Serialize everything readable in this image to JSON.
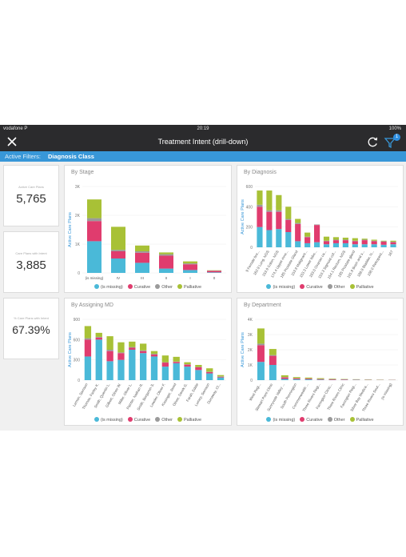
{
  "status_bar": {
    "carrier": "vodafone P",
    "time": "20:19",
    "battery": "100%"
  },
  "header": {
    "title": "Treatment Intent (drill-down)",
    "filter_count": "1"
  },
  "filter_bar": {
    "label": "Active Filters:",
    "value": "Diagnosis Class"
  },
  "kpis": [
    {
      "label": "Active Care Plans",
      "value": "5,765"
    },
    {
      "label": "Care Plans with Intent",
      "value": "3,885"
    },
    {
      "label": "% Care Plans with Intent",
      "value": "67.39%"
    }
  ],
  "colors": {
    "missing": "#4ab9d8",
    "curative": "#e03c6e",
    "other": "#9a9a9a",
    "palliative": "#a8c136",
    "accent": "#3897d8"
  },
  "legend": [
    {
      "key": "missing",
      "label": "(is missing)"
    },
    {
      "key": "curative",
      "label": "Curative"
    },
    {
      "key": "other",
      "label": "Other"
    },
    {
      "key": "palliative",
      "label": "Palliative"
    }
  ],
  "chart_data": [
    {
      "id": "stage",
      "type": "bar",
      "stacked": true,
      "title": "By Stage",
      "ylabel": "Active Care Plans",
      "ylim": [
        0,
        3000
      ],
      "yticks": [
        "0",
        "1K",
        "2K",
        "3K"
      ],
      "label_rotation": 0,
      "categories": [
        "(is missing)",
        "IV",
        "III",
        "II",
        "I",
        "0"
      ],
      "series": [
        {
          "name": "(is missing)",
          "values": [
            1100,
            500,
            350,
            150,
            100,
            20
          ]
        },
        {
          "name": "Curative",
          "values": [
            700,
            250,
            350,
            450,
            200,
            50
          ]
        },
        {
          "name": "Other",
          "values": [
            100,
            50,
            50,
            50,
            30,
            10
          ]
        },
        {
          "name": "Palliative",
          "values": [
            650,
            800,
            200,
            60,
            70,
            10
          ]
        }
      ]
    },
    {
      "id": "diagnosis",
      "type": "bar",
      "stacked": true,
      "title": "By Diagnosis",
      "ylabel": "Active Care Plans",
      "ylim": [
        0,
        600
      ],
      "yticks": [
        "0",
        "200",
        "400",
        "600"
      ],
      "label_rotation": -60,
      "categories": [
        "9 Female bre...",
        "162.9 Lung, NOS",
        "153.9 Colon, NOS",
        "174.4 Upper-inne...",
        "185 Prostate Gland",
        "153.9 Malignant...",
        "153.3 Lower lobe...",
        "183.0 Ovarian ca...",
        "153.3 Sigmoid col...",
        "154.1 Rectum, NOS",
        "185 Prostate gland",
        "191.9 Brain and s...",
        "188.9 Bladder, N...",
        "158.0 Retroperit...",
        "167"
      ],
      "series": [
        {
          "name": "(is missing)",
          "values": [
            200,
            170,
            180,
            150,
            60,
            40,
            50,
            30,
            40,
            40,
            30,
            30,
            30,
            25,
            30
          ]
        },
        {
          "name": "Curative",
          "values": [
            200,
            180,
            170,
            120,
            170,
            60,
            170,
            30,
            30,
            30,
            30,
            40,
            30,
            30,
            20
          ]
        },
        {
          "name": "Other",
          "values": [
            20,
            15,
            15,
            10,
            10,
            5,
            5,
            5,
            5,
            5,
            5,
            5,
            5,
            5,
            5
          ]
        },
        {
          "name": "Palliative",
          "values": [
            140,
            195,
            150,
            120,
            40,
            40,
            0,
            40,
            25,
            20,
            25,
            10,
            10,
            5,
            10
          ]
        }
      ]
    },
    {
      "id": "assigning_md",
      "type": "bar",
      "stacked": true,
      "title": "By Assigning MD",
      "ylabel": "Active Care Plans",
      "ylim": [
        0,
        900
      ],
      "yticks": [
        "0",
        "300",
        "600",
        "900"
      ],
      "label_rotation": -60,
      "categories": [
        "Lemon, Samson",
        "Thomas, Farley K.",
        "Smith, Quentin L.",
        "Gilbert, Oliver W.",
        "Miller, Oliver L.",
        "Painter, Nathan R.",
        "Smith, Benjamin S.",
        "Lowder, Oliver F.",
        "Kissinger, Jared",
        "Oliver, Derek G.",
        "Farah, Eddie",
        "Lumey, Samson",
        "Dunaway, Cl..."
      ],
      "series": [
        {
          "name": "(is missing)",
          "values": [
            350,
            600,
            280,
            300,
            450,
            400,
            350,
            200,
            250,
            200,
            150,
            100,
            40
          ]
        },
        {
          "name": "Curative",
          "values": [
            250,
            30,
            150,
            100,
            30,
            30,
            30,
            60,
            20,
            30,
            40,
            20,
            10
          ]
        },
        {
          "name": "Other",
          "values": [
            20,
            10,
            20,
            10,
            10,
            10,
            10,
            5,
            5,
            5,
            5,
            5,
            5
          ]
        },
        {
          "name": "Palliative",
          "values": [
            180,
            60,
            200,
            150,
            80,
            100,
            40,
            100,
            70,
            30,
            30,
            50,
            20
          ]
        }
      ]
    },
    {
      "id": "department",
      "type": "bar",
      "stacked": true,
      "title": "By Department",
      "ylabel": "Active Care Plans",
      "ylim": [
        0,
        4000
      ],
      "yticks": [
        "0",
        "1K",
        "2K",
        "3K",
        "4K"
      ],
      "label_rotation": -60,
      "categories": [
        "West Regi...",
        "Stewart Point Clinic",
        "Sunnyvale Valley ...",
        "South Pennington",
        "Commonwealth ...",
        "Three Rivers Regi...",
        "Farrington Clinic...",
        "Three Rivers Clinic",
        "Farrington Regi...",
        "Silver Bay Medica...",
        "Three Rivers Sout...",
        "(is missing)"
      ],
      "series": [
        {
          "name": "(is missing)",
          "values": [
            1200,
            1000,
            80,
            60,
            50,
            30,
            20,
            20,
            20,
            15,
            10,
            10
          ]
        },
        {
          "name": "Curative",
          "values": [
            1100,
            600,
            100,
            60,
            50,
            40,
            40,
            30,
            20,
            15,
            10,
            10
          ]
        },
        {
          "name": "Other",
          "values": [
            100,
            50,
            20,
            10,
            10,
            10,
            10,
            5,
            5,
            5,
            5,
            5
          ]
        },
        {
          "name": "Palliative",
          "values": [
            1000,
            400,
            120,
            70,
            60,
            50,
            30,
            20,
            15,
            15,
            10,
            5
          ]
        }
      ]
    }
  ]
}
